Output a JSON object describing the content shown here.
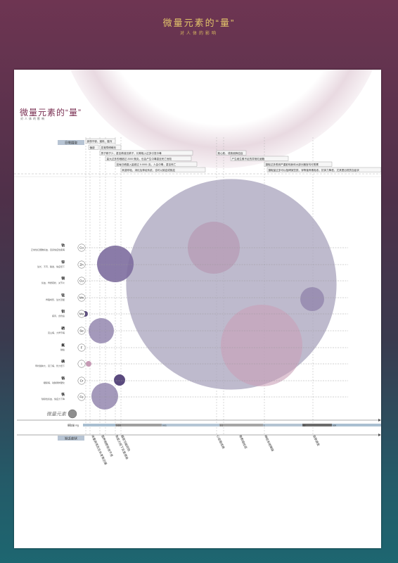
{
  "header": {
    "title": "微量元素的“量”",
    "subtitle": "对人体的影响"
  },
  "poster": {
    "title": "微量元素的“量”",
    "subtitle": "对人体的影响"
  },
  "colors": {
    "large_circle": "#a8a3bc",
    "purple": "#7d6d9e",
    "pink": "#c9a0b8",
    "mauve": "#b79ab4",
    "dark_purple": "#5a4a7e",
    "gray": "#8e8e8e",
    "axis_bar": "#a5bcd0"
  },
  "top_label": "日需摄取",
  "bottom_label": "缺乏症状",
  "annotations": [
    "食物不够、锻炼、腹泻",
    "偏瘦",
    "发育障碍畸形",
    "男子精子少、甚至精液无精子、长期吸入过多引发中毒",
    "量大过多的硒超过 2000 微克，也会产生中毒甚至死亡危险",
    "如每日硒摄入量超过 0.0001 克，人会中毒，甚至死亡",
    "刺激呼吸、消化及神经系统，也可以致癌或致癌",
    "致心肌、或致使肺癌症",
    "产生维生素不足的异常红细胞",
    "摄取过多受到严重影响身体大部分器官均可受累",
    "摄取量过多可以阻碍某些铁、锌等营养素吸收，抗体力降低、尤其是出现贫血症状"
  ],
  "elements": [
    {
      "name": "钴",
      "symbol": "Co",
      "desc": "正常性红细胞贫血、自身免疫性疾病"
    },
    {
      "name": "锌",
      "symbol": "Zn",
      "desc": "生长、不育、脱发、免疫低下"
    },
    {
      "name": "铜",
      "symbol": "Cu",
      "desc": "贫血、骨质疏松、关节炎"
    },
    {
      "name": "锰",
      "symbol": "Mn",
      "desc": "骨骼畸形、生长迟缓"
    },
    {
      "name": "钼",
      "symbol": "Mo",
      "desc": "痛风、食管癌"
    },
    {
      "name": "硒",
      "symbol": "Se",
      "desc": "克山病、大骨节病"
    },
    {
      "name": "氟",
      "symbol": "F",
      "desc": "龋齿"
    },
    {
      "name": "碘",
      "symbol": "I",
      "desc": "甲状腺肿大、克汀病、智力低下"
    },
    {
      "name": "铬",
      "symbol": "Cr",
      "desc": "糖尿病、动脉粥样硬化"
    },
    {
      "name": "铁",
      "symbol": "Fe",
      "desc": "缺铁性贫血、免疫力下降"
    }
  ],
  "legend_label": "微量元素",
  "axis": {
    "label": "摄取量 mg",
    "ticks": [
      "0.001",
      "0.01",
      "0.1",
      "1",
      "10",
      "100"
    ]
  },
  "symptoms": [
    "体重异常及生长发育迟缓",
    "营养物质吸收不良",
    "免疫力低下反复感染",
    "器官功能损伤",
    "心血管疾病",
    "骨质疏松症",
    "神经系统障碍",
    "皮肤病变"
  ]
}
